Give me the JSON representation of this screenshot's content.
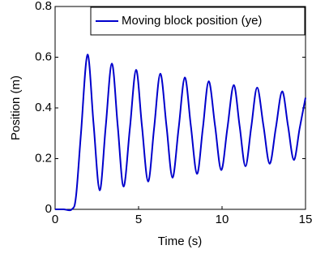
{
  "chart_data": {
    "type": "line",
    "xlabel": "Time (s)",
    "ylabel": "Position (m)",
    "x": [
      0,
      0.5,
      1.0,
      1.25,
      1.55,
      1.94,
      2.3,
      2.67,
      3.03,
      3.4,
      3.75,
      4.1,
      4.48,
      4.85,
      5.2,
      5.57,
      5.93,
      6.3,
      6.67,
      7.03,
      7.4,
      7.77,
      8.13,
      8.5,
      8.85,
      9.2,
      9.58,
      9.95,
      10.32,
      10.7,
      11.05,
      11.4,
      11.75,
      12.1,
      12.48,
      12.85,
      13.22,
      13.6,
      13.95,
      14.3,
      14.65,
      15
    ],
    "series": [
      {
        "name": "Moving block position (ye)",
        "color": "#0000cc",
        "values": [
          0,
          0,
          0,
          0.05,
          0.3,
          0.61,
          0.34,
          0.075,
          0.325,
          0.575,
          0.33,
          0.09,
          0.32,
          0.55,
          0.33,
          0.11,
          0.32,
          0.535,
          0.33,
          0.125,
          0.32,
          0.52,
          0.33,
          0.14,
          0.32,
          0.505,
          0.33,
          0.155,
          0.32,
          0.49,
          0.33,
          0.17,
          0.325,
          0.48,
          0.33,
          0.18,
          0.32,
          0.465,
          0.33,
          0.195,
          0.32,
          0.44
        ]
      }
    ],
    "xlim": [
      0,
      15
    ],
    "xticks": [
      0,
      5,
      10,
      15
    ],
    "ylim": [
      0,
      0.8
    ],
    "yticks": [
      0,
      0.2,
      0.4,
      0.6,
      0.8
    ],
    "grid": false,
    "legend": "upper right"
  }
}
